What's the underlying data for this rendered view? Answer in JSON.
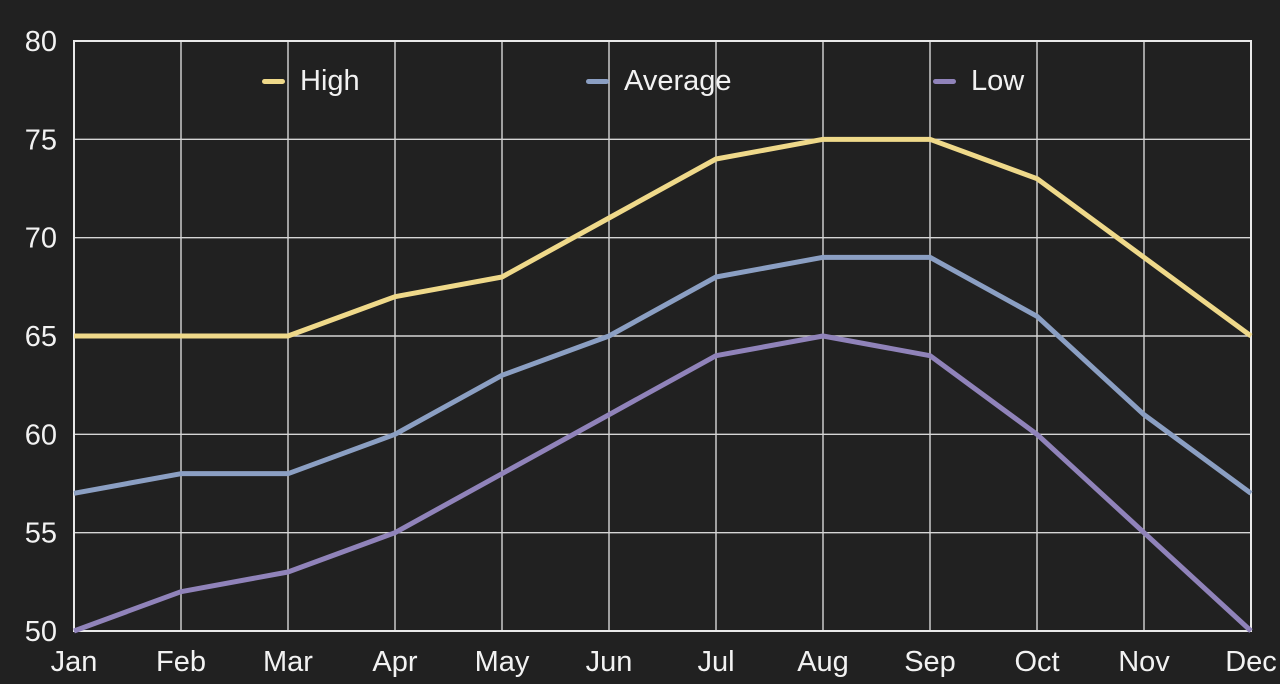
{
  "app": {
    "background": "#212121",
    "text_color": "#f2f2f2",
    "grid_color": "#d6d6d6",
    "border_color": "#e9e9e9"
  },
  "chart_data": {
    "type": "line",
    "title": "",
    "xlabel": "",
    "ylabel": "",
    "x": [
      "Jan",
      "Feb",
      "Mar",
      "Apr",
      "May",
      "Jun",
      "Jul",
      "Aug",
      "Sep",
      "Oct",
      "Nov",
      "Dec"
    ],
    "series": [
      {
        "name": "High",
        "color": "#efd98a",
        "values": [
          65,
          65,
          65,
          67,
          68,
          71,
          74,
          75,
          75,
          73,
          69,
          65
        ]
      },
      {
        "name": "Average",
        "color": "#8b9fc3",
        "values": [
          57,
          58,
          58,
          60,
          63,
          65,
          68,
          69,
          69,
          66,
          61,
          57
        ]
      },
      {
        "name": "Low",
        "color": "#9083ba",
        "values": [
          50,
          52,
          53,
          55,
          58,
          61,
          64,
          65,
          64,
          60,
          55,
          50
        ]
      }
    ],
    "ylim": [
      50,
      80
    ],
    "yticks": [
      50,
      55,
      60,
      65,
      70,
      75,
      80
    ],
    "grid": "on",
    "legend_position": "top-inside-row"
  }
}
